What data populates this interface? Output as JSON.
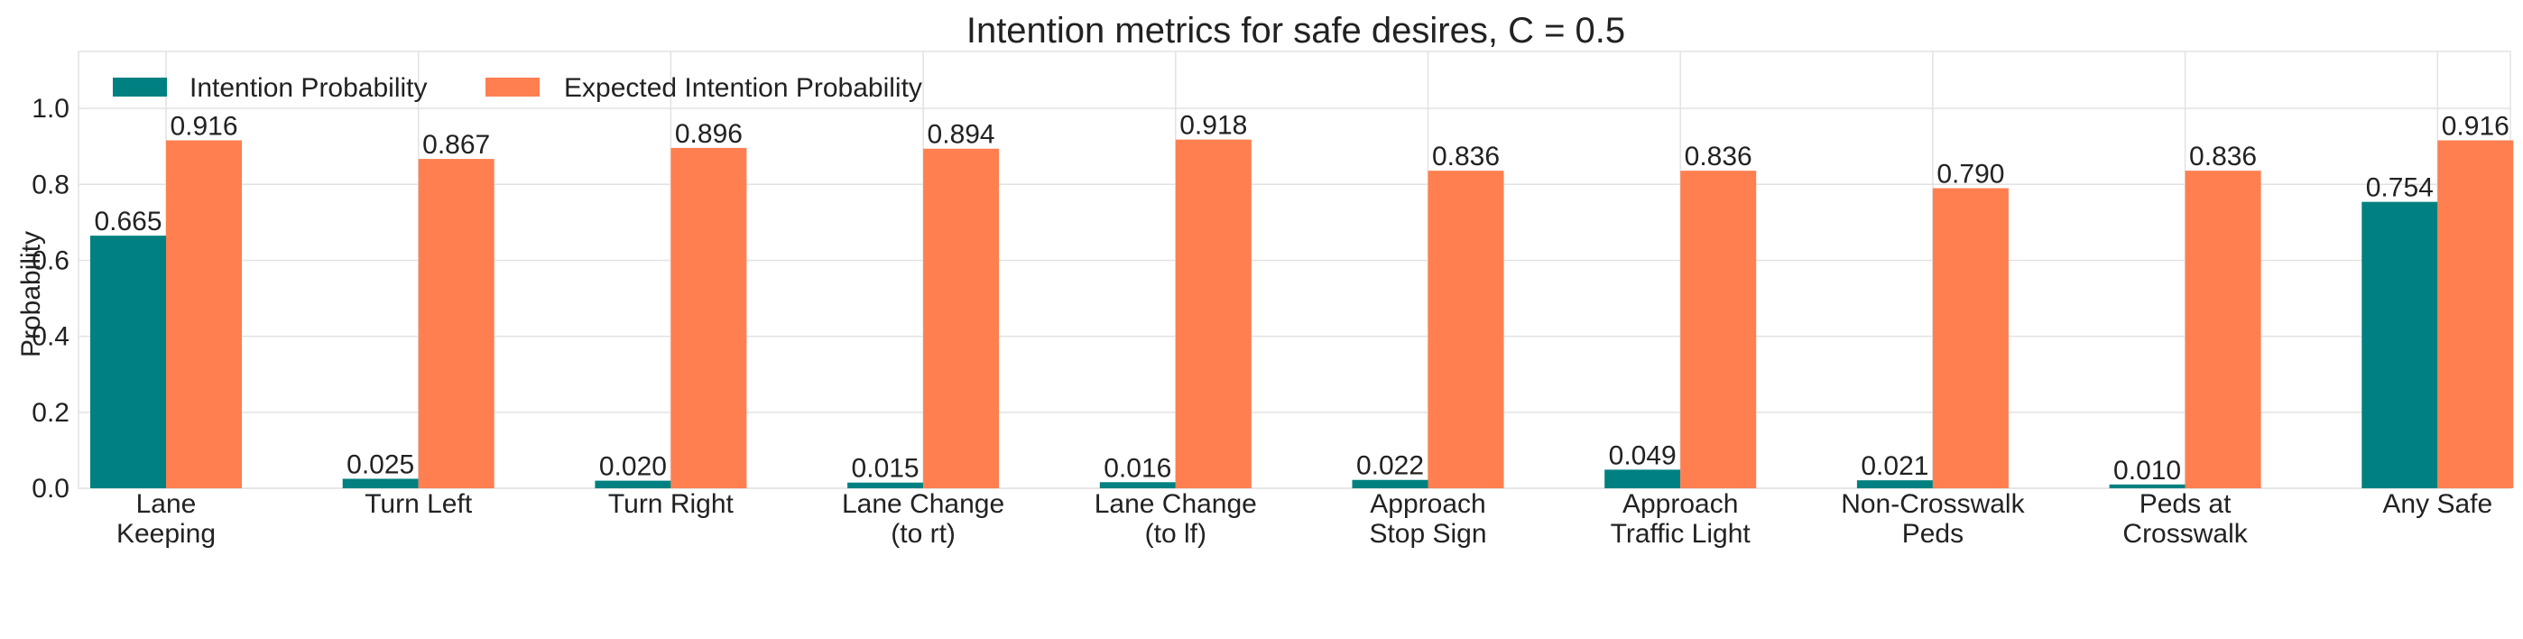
{
  "chart_data": {
    "type": "bar",
    "title": "Intention metrics for safe desires,  C = 0.5",
    "xlabel": "",
    "ylabel": "Probability",
    "ylim": [
      0,
      1.15
    ],
    "yticks": [
      "0.0",
      "0.2",
      "0.4",
      "0.6",
      "0.8",
      "1.0"
    ],
    "grid": true,
    "legend_position": "top-left",
    "categories": [
      [
        "Lane",
        "Keeping"
      ],
      [
        "Turn Left"
      ],
      [
        "Turn Right"
      ],
      [
        "Lane Change",
        "(to rt)"
      ],
      [
        "Lane Change",
        "(to lf)"
      ],
      [
        "Approach",
        "Stop Sign"
      ],
      [
        "Approach",
        "Traffic Light"
      ],
      [
        "Non-Crosswalk",
        "Peds"
      ],
      [
        "Peds at",
        "Crosswalk"
      ],
      [
        "Any Safe"
      ]
    ],
    "series": [
      {
        "name": "Intention Probability",
        "color": "#008080",
        "values": [
          0.665,
          0.025,
          0.02,
          0.015,
          0.016,
          0.022,
          0.049,
          0.021,
          0.01,
          0.754
        ],
        "labels": [
          "0.665",
          "0.025",
          "0.020",
          "0.015",
          "0.016",
          "0.022",
          "0.049",
          "0.021",
          "0.010",
          "0.754"
        ]
      },
      {
        "name": "Expected Intention Probability",
        "color": "#FF7F50",
        "values": [
          0.916,
          0.867,
          0.896,
          0.894,
          0.918,
          0.836,
          0.836,
          0.79,
          0.836,
          0.916
        ],
        "labels": [
          "0.916",
          "0.867",
          "0.896",
          "0.894",
          "0.918",
          "0.836",
          "0.836",
          "0.790",
          "0.836",
          "0.916"
        ]
      }
    ]
  }
}
